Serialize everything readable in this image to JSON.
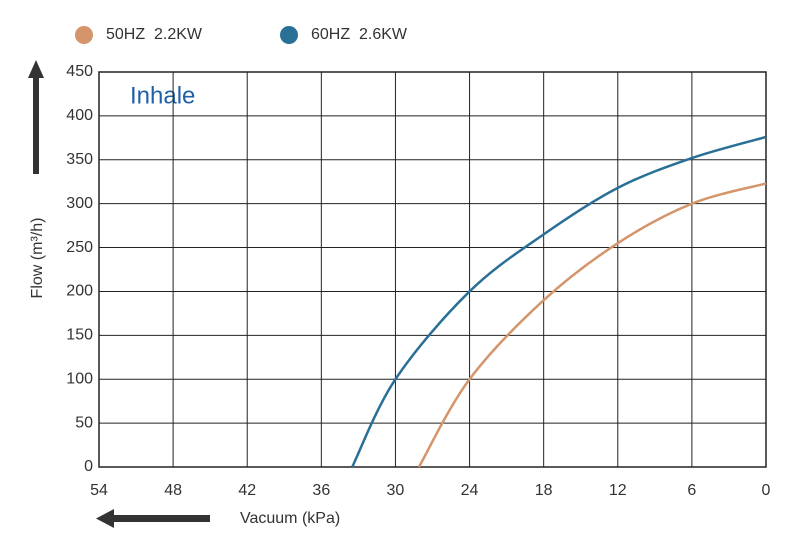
{
  "chart_data": {
    "type": "line",
    "annotation": "Inhale",
    "x_label": "Vacuum (kPa)",
    "y_label": "Flow (m³/h)",
    "xlim": [
      54,
      0
    ],
    "xticks": [
      54,
      48,
      42,
      36,
      30,
      24,
      18,
      12,
      6,
      0
    ],
    "ylim": [
      0,
      450
    ],
    "yticks": [
      0,
      50,
      100,
      150,
      200,
      250,
      300,
      350,
      400,
      450
    ],
    "grid": true,
    "legend": "top-left",
    "series": [
      {
        "name": "50HZ  2.2KW",
        "color": "#d4956a",
        "x": [
          28.1,
          24,
          18,
          12,
          6,
          0
        ],
        "values": [
          0,
          100,
          190,
          255,
          300,
          323
        ]
      },
      {
        "name": "60HZ  2.6KW",
        "color": "#2a6f96",
        "x": [
          33.5,
          30,
          24,
          18,
          12,
          6,
          0
        ],
        "values": [
          0,
          100,
          200,
          265,
          318,
          352,
          376
        ]
      }
    ]
  }
}
